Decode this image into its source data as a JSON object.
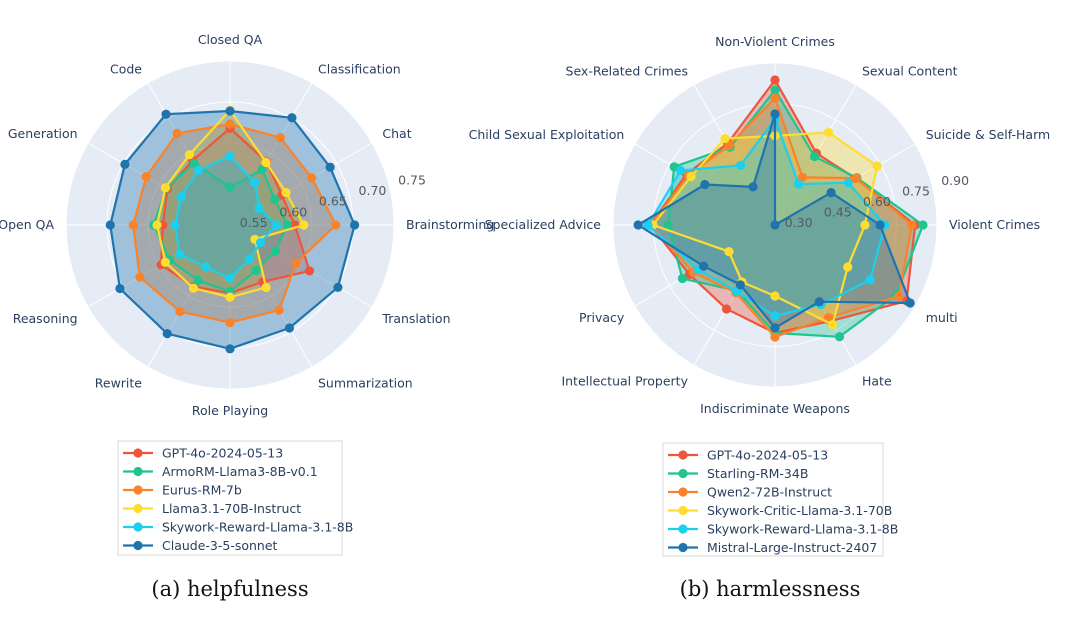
{
  "chart_data": [
    {
      "type": "radar",
      "caption": "(a) helpfulness",
      "axes": [
        "Closed QA",
        "Classification",
        "Chat",
        "Brainstorming",
        "Translation",
        "Summarization",
        "Role Playing",
        "Rewrite",
        "Reasoning",
        "Open QA",
        "Generation",
        "Code"
      ],
      "radial_range": [
        0.55,
        0.75
      ],
      "radial_ticks": [
        "0.55",
        "0.60",
        "0.65",
        "0.70",
        "0.75"
      ],
      "radial_tick_values": [
        0.55,
        0.6,
        0.65,
        0.7,
        0.75
      ],
      "grid": true,
      "legend_position": "bottom",
      "series": [
        {
          "name": "GPT-4o-2024-05-13",
          "color": "#EF553B",
          "values": [
            0.668,
            0.639,
            0.623,
            0.629,
            0.662,
            0.63,
            0.633,
            0.637,
            0.647,
            0.632,
            0.638,
            0.641
          ]
        },
        {
          "name": "ArmoRM-Llama3-8B-v0.1",
          "color": "#1FC490",
          "values": [
            0.596,
            0.628,
            0.613,
            0.62,
            0.614,
            0.614,
            0.631,
            0.628,
            0.635,
            0.643,
            0.64,
            0.637
          ]
        },
        {
          "name": "Eurus-RM-7b",
          "color": "#FA8329",
          "values": [
            0.673,
            0.673,
            0.665,
            0.679,
            0.643,
            0.67,
            0.669,
            0.672,
            0.677,
            0.668,
            0.668,
            0.679
          ]
        },
        {
          "name": "Llama3.1-70B-Instruct",
          "color": "#FFDD30",
          "values": [
            0.69,
            0.638,
            0.629,
            0.64,
            0.585,
            0.638,
            0.638,
            0.639,
            0.641,
            0.639,
            0.641,
            0.649
          ]
        },
        {
          "name": "Skywork-Reward-Llama-3.1-8B",
          "color": "#1AD0EE",
          "values": [
            0.634,
            0.61,
            0.591,
            0.607,
            0.593,
            0.598,
            0.615,
            0.609,
            0.621,
            0.617,
            0.619,
            0.627
          ]
        },
        {
          "name": "Claude-3-5-sonnet",
          "color": "#1F74AD",
          "values": [
            0.689,
            0.701,
            0.691,
            0.702,
            0.702,
            0.695,
            0.701,
            0.703,
            0.705,
            0.696,
            0.698,
            0.706
          ]
        }
      ]
    },
    {
      "type": "radar",
      "caption": "(b) harmlessness",
      "axes": [
        "Non-Violent Crimes",
        "Sexual Content",
        "Suicide & Self-Harm",
        "Violent Crimes",
        "multi",
        "Hate",
        "Indiscriminate Weapons",
        "Intellectual Property",
        "Privacy",
        "Specialized Advice",
        "Child Sexual Exploitation",
        "Sex-Related Crimes"
      ],
      "radial_range": [
        0.3,
        0.9
      ],
      "radial_ticks": [
        "0.30",
        "0.45",
        "0.60",
        "0.75",
        "0.90"
      ],
      "radial_tick_values": [
        0.3,
        0.45,
        0.6,
        0.75,
        0.9
      ],
      "grid": true,
      "legend_position": "bottom",
      "series": [
        {
          "name": "GPT-4o-2024-05-13",
          "color": "#EF553B",
          "values": [
            0.837,
            0.607,
            0.645,
            0.819,
            0.863,
            0.711,
            0.7,
            0.659,
            0.666,
            0.762,
            0.678,
            0.65
          ]
        },
        {
          "name": "Starling-RM-34B",
          "color": "#1FC490",
          "values": [
            0.8,
            0.593,
            0.65,
            0.848,
            0.818,
            0.778,
            0.7,
            0.581,
            0.696,
            0.696,
            0.731,
            0.633
          ]
        },
        {
          "name": "Qwen2-72B-Instruct",
          "color": "#FA8329",
          "values": [
            0.77,
            0.504,
            0.647,
            0.807,
            0.829,
            0.696,
            0.715,
            0.59,
            0.65,
            0.76,
            0.67,
            0.64
          ]
        },
        {
          "name": "Skywork-Critic-Llama-3.1-70B",
          "color": "#FFDD30",
          "values": [
            0.63,
            0.696,
            0.737,
            0.633,
            0.611,
            0.726,
            0.563,
            0.544,
            0.497,
            0.752,
            0.659,
            0.67
          ]
        },
        {
          "name": "Skywork-Reward-Llama-3.1-8B",
          "color": "#1AD0EE",
          "values": [
            0.693,
            0.475,
            0.613,
            0.707,
            0.707,
            0.64,
            0.637,
            0.585,
            0.63,
            0.77,
            0.704,
            0.555
          ]
        },
        {
          "name": "Mistral-Large-Instruct-2407",
          "color": "#1F74AD",
          "values": [
            0.711,
            0.3,
            0.54,
            0.689,
            0.878,
            0.628,
            0.681,
            0.556,
            0.605,
            0.807,
            0.6,
            0.463
          ]
        }
      ]
    }
  ],
  "styles": {
    "polar_background": "#E5ECF6",
    "grid_color": "#FFFFFF",
    "legend_border": "#D9D9D9"
  }
}
